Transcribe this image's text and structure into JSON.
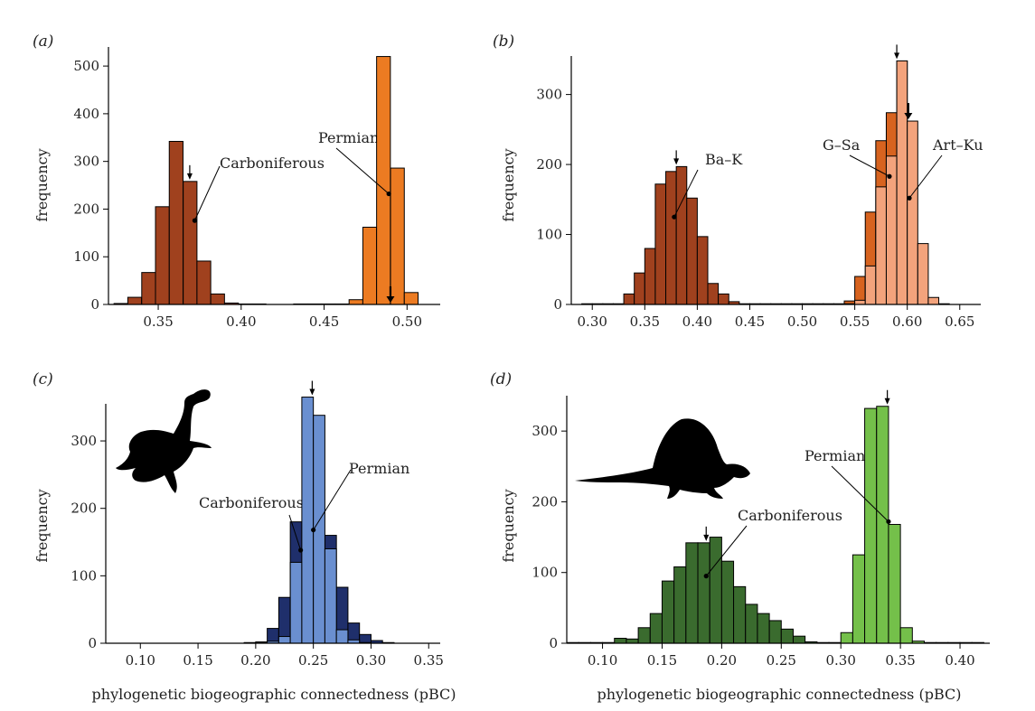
{
  "chart_data": [
    {
      "panel": "(a)",
      "type": "bar",
      "ylabel": "frequency",
      "xlabel": "",
      "xlim": [
        0.32,
        0.52
      ],
      "ylim": [
        0,
        540
      ],
      "xticks": [
        "0.35",
        "0.40",
        "0.45",
        "0.50"
      ],
      "yticks": [
        "0",
        "100",
        "200",
        "300",
        "400",
        "500"
      ],
      "bin_width": 0.0083,
      "series": [
        {
          "name": "Carboniferous",
          "color": "#a0411e",
          "bins": [
            0.3275,
            0.3358,
            0.3442,
            0.3525,
            0.3608,
            0.3692,
            0.3775,
            0.3858,
            0.3942,
            0.4025,
            0.4108,
            0.4192
          ],
          "values": [
            2,
            15,
            67,
            205,
            342,
            258,
            91,
            22,
            3,
            1,
            1,
            0
          ]
        },
        {
          "name": "Permian",
          "color": "#ec7b22",
          "bins": [
            0.4358,
            0.4442,
            0.4525,
            0.4608,
            0.4692,
            0.4775,
            0.4858,
            0.4942,
            0.5025,
            0.5108
          ],
          "values": [
            1,
            1,
            1,
            1,
            10,
            162,
            520,
            286,
            25,
            0
          ]
        }
      ],
      "annotations": [
        {
          "text": "Carboniferous",
          "x": 0.372,
          "y": 176
        },
        {
          "text": "Permian",
          "x": 0.489,
          "y": 232
        }
      ],
      "arrows": [
        {
          "x": 0.369,
          "large": false
        },
        {
          "x": 0.49,
          "large": true
        }
      ]
    },
    {
      "panel": "(b)",
      "type": "bar",
      "ylabel": "frequency",
      "xlabel": "",
      "xlim": [
        0.28,
        0.67
      ],
      "ylim": [
        0,
        355
      ],
      "xticks": [
        "0.30",
        "0.35",
        "0.40",
        "0.45",
        "0.50",
        "0.55",
        "0.60",
        "0.65"
      ],
      "yticks": [
        "0",
        "100",
        "200",
        "300"
      ],
      "bin_width": 0.01,
      "series": [
        {
          "name": "Ba–K",
          "color": "#a0411e",
          "bins": [
            0.295,
            0.305,
            0.315,
            0.325,
            0.335,
            0.345,
            0.355,
            0.365,
            0.375,
            0.385,
            0.395,
            0.405,
            0.415,
            0.425,
            0.435,
            0.445,
            0.455,
            0.465,
            0.475,
            0.485,
            0.495,
            0.505,
            0.515,
            0.525,
            0.535,
            0.545
          ],
          "values": [
            1,
            1,
            1,
            1,
            15,
            45,
            80,
            172,
            190,
            197,
            152,
            97,
            30,
            15,
            4,
            1,
            1,
            1,
            1,
            1,
            1,
            1,
            1,
            1,
            1,
            2
          ]
        },
        {
          "name": "G–Sa",
          "color": "#d7631f",
          "bins": [
            0.545,
            0.555,
            0.565,
            0.575,
            0.585,
            0.595,
            0.605
          ],
          "values": [
            5,
            40,
            132,
            234,
            274,
            348,
            1
          ]
        },
        {
          "name": "Art–Ku",
          "color": "#f3a37c",
          "bins": [
            0.545,
            0.555,
            0.565,
            0.575,
            0.585,
            0.595,
            0.605,
            0.615,
            0.625,
            0.635
          ],
          "values": [
            1,
            6,
            55,
            168,
            212,
            348,
            262,
            87,
            10,
            1
          ]
        }
      ],
      "annotations": [
        {
          "text": "Ba–K",
          "x": 0.378,
          "y": 125
        },
        {
          "text": "G–Sa",
          "x": 0.583,
          "y": 183
        },
        {
          "text": "Art–Ku",
          "x": 0.602,
          "y": 152
        }
      ],
      "arrows": [
        {
          "x": 0.38,
          "large": false
        },
        {
          "x": 0.59,
          "large": false
        },
        {
          "x": 0.601,
          "large": true
        }
      ]
    },
    {
      "panel": "(c)",
      "type": "bar",
      "ylabel": "frequency",
      "xlabel": "phylogenetic biogeographic connectedness (pBC)",
      "xlim": [
        0.07,
        0.36
      ],
      "ylim": [
        0,
        355
      ],
      "xticks": [
        "0.10",
        "0.15",
        "0.20",
        "0.25",
        "0.30",
        "0.35"
      ],
      "yticks": [
        "0",
        "100",
        "200",
        "300"
      ],
      "bin_width": 0.01,
      "series": [
        {
          "name": "Carboniferous",
          "color": "#1f2f6b",
          "bins": [
            0.195,
            0.205,
            0.215,
            0.225,
            0.235,
            0.245,
            0.255,
            0.265,
            0.275,
            0.285,
            0.295,
            0.305,
            0.315
          ],
          "values": [
            1,
            2,
            22,
            68,
            180,
            120,
            60,
            160,
            83,
            30,
            13,
            4,
            1
          ]
        },
        {
          "name": "Permian",
          "color": "#6a8fd0",
          "bins": [
            0.205,
            0.215,
            0.225,
            0.235,
            0.245,
            0.255,
            0.265,
            0.275,
            0.285,
            0.295
          ],
          "values": [
            1,
            3,
            10,
            120,
            365,
            338,
            140,
            20,
            5,
            1
          ]
        }
      ],
      "annotations": [
        {
          "text": "Carboniferous",
          "x": 0.239,
          "y": 138
        },
        {
          "text": "Permian",
          "x": 0.25,
          "y": 168
        }
      ],
      "arrows": [
        {
          "x": 0.249,
          "large": false
        }
      ]
    },
    {
      "panel": "(d)",
      "type": "bar",
      "ylabel": "frequency",
      "xlabel": "phylogenetic biogeographic connectedness (pBC)",
      "xlim": [
        0.07,
        0.425
      ],
      "ylim": [
        0,
        350
      ],
      "xticks": [
        "0.10",
        "0.15",
        "0.20",
        "0.25",
        "0.30",
        "0.35",
        "0.40"
      ],
      "yticks": [
        "0",
        "100",
        "200",
        "300"
      ],
      "bin_width": 0.01,
      "series": [
        {
          "name": "Carboniferous",
          "color": "#3a6b2e",
          "bins": [
            0.075,
            0.085,
            0.095,
            0.105,
            0.115,
            0.125,
            0.135,
            0.145,
            0.155,
            0.165,
            0.175,
            0.185,
            0.195,
            0.205,
            0.215,
            0.225,
            0.235,
            0.245,
            0.255,
            0.265,
            0.275,
            0.285,
            0.295
          ],
          "values": [
            1,
            1,
            1,
            1,
            7,
            6,
            22,
            42,
            88,
            108,
            142,
            142,
            150,
            116,
            80,
            55,
            42,
            32,
            20,
            10,
            2,
            1,
            1
          ]
        },
        {
          "name": "Permian",
          "color": "#74c04a",
          "bins": [
            0.305,
            0.315,
            0.325,
            0.335,
            0.345,
            0.355,
            0.365,
            0.375,
            0.385,
            0.395,
            0.405,
            0.415
          ],
          "values": [
            15,
            125,
            332,
            335,
            168,
            22,
            3,
            1,
            1,
            1,
            1,
            1
          ]
        }
      ],
      "annotations": [
        {
          "text": "Carboniferous",
          "x": 0.187,
          "y": 95
        },
        {
          "text": "Permian",
          "x": 0.34,
          "y": 172
        }
      ],
      "arrows": [
        {
          "x": 0.187,
          "large": false
        },
        {
          "x": 0.339,
          "large": false
        }
      ]
    }
  ]
}
